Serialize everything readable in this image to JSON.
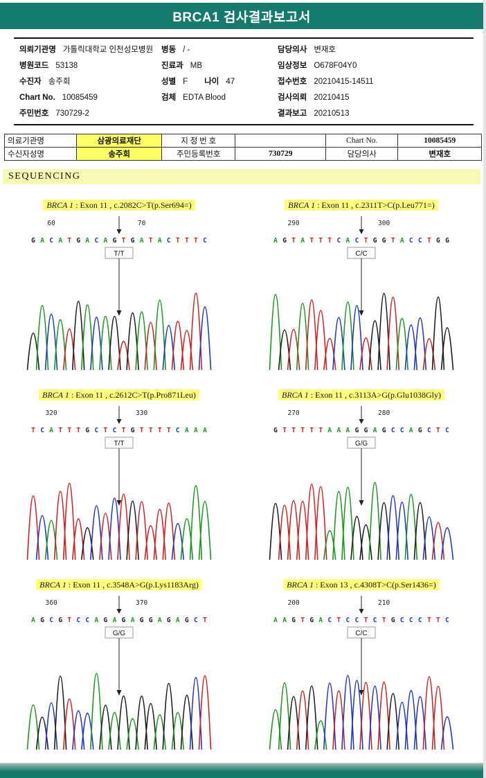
{
  "header": {
    "title": "BRCA1 검사결과보고서"
  },
  "info": {
    "org": {
      "label": "의뢰기관명",
      "value": "가톨릭대학교 인천성모병원"
    },
    "ward": {
      "label": "병동",
      "value": "/ -"
    },
    "doctor": {
      "label": "담당의사",
      "value": "변재호"
    },
    "hosp_code": {
      "label": "병원코드",
      "value": "53138"
    },
    "dept": {
      "label": "진료과",
      "value": "MB"
    },
    "clinical": {
      "label": "임상정보",
      "value": "O678F04Y0"
    },
    "patient": {
      "label": "수진자",
      "value": "송주회"
    },
    "sex": {
      "label": "성별",
      "value": "F"
    },
    "age": {
      "label": "나이",
      "value": "47"
    },
    "accession": {
      "label": "접수번호",
      "value": "20210415-14511"
    },
    "chart_no": {
      "label": "Chart No.",
      "value": "10085459"
    },
    "specimen": {
      "label": "검체",
      "value": "EDTA Blood"
    },
    "requested": {
      "label": "검사의뢰",
      "value": "20210415"
    },
    "resident": {
      "label": "주민번호",
      "value": "730729-2"
    },
    "reported": {
      "label": "결과보고",
      "value": "20210513"
    }
  },
  "ref_table": {
    "r1c1": "의료기관명",
    "r1c2": "삼광의료재단",
    "r1c3": "지 정 번 호",
    "r1c4": "",
    "r1c5": "Chart No.",
    "r1c6": "10085459",
    "r2c1": "수신자성명",
    "r2c2": "송주회",
    "r2c3": "주민등록번호",
    "r2c4": "730729",
    "r2c5": "담당의사",
    "r2c6": "변재호"
  },
  "section_title": "SEQUENCING",
  "base_colors": {
    "A": "#18961d",
    "C": "#1d36c9",
    "G": "#1b1b1b",
    "T": "#d02020"
  },
  "panels": [
    {
      "gene": "BRCA 1",
      "rest": " : Exon 11 , c.2082C>T(p.Ser694=)",
      "genotype": "T/T",
      "pos_left": "60",
      "pos_right": "70",
      "sequence": "GACATGACAGTGATACTTTC"
    },
    {
      "gene": "BRCA 1",
      "rest": " : Exon 11 , c.2311T>C(p.Leu771=)",
      "genotype": "C/C",
      "pos_left": "290",
      "pos_right": "300",
      "sequence": "AGTATTTCACTGGTACCTGG"
    },
    {
      "gene": "BRCA 1",
      "rest": " : Exon 11 , c.2612C>T(p.Pro871Leu)",
      "genotype": "T/T",
      "pos_left": "320",
      "pos_right": "330",
      "sequence": "TCATTTGCTCTGTTTTCAAA"
    },
    {
      "gene": "BRCA 1",
      "rest": " : Exon 11 , c.3113A>G(p.Glu1038Gly)",
      "genotype": "G/G",
      "pos_left": "270",
      "pos_right": "280",
      "sequence": "GTTTTTAAAGGAGCCAGCTC"
    },
    {
      "gene": "BRCA 1",
      "rest": " : Exon 11 , c.3548A>G(p.Lys1183Arg)",
      "genotype": "G/G",
      "pos_left": "360",
      "pos_right": "370",
      "sequence": "AGCGTCCAGAGAGGAGAGCT"
    },
    {
      "gene": "BRCA 1",
      "rest": " : Exon 13 , c.4308T>C(p.Ser1436=)",
      "genotype": "C/C",
      "pos_left": "200",
      "pos_right": "210",
      "sequence": "AAGTGACTCCTCTGCCCTTC"
    }
  ]
}
